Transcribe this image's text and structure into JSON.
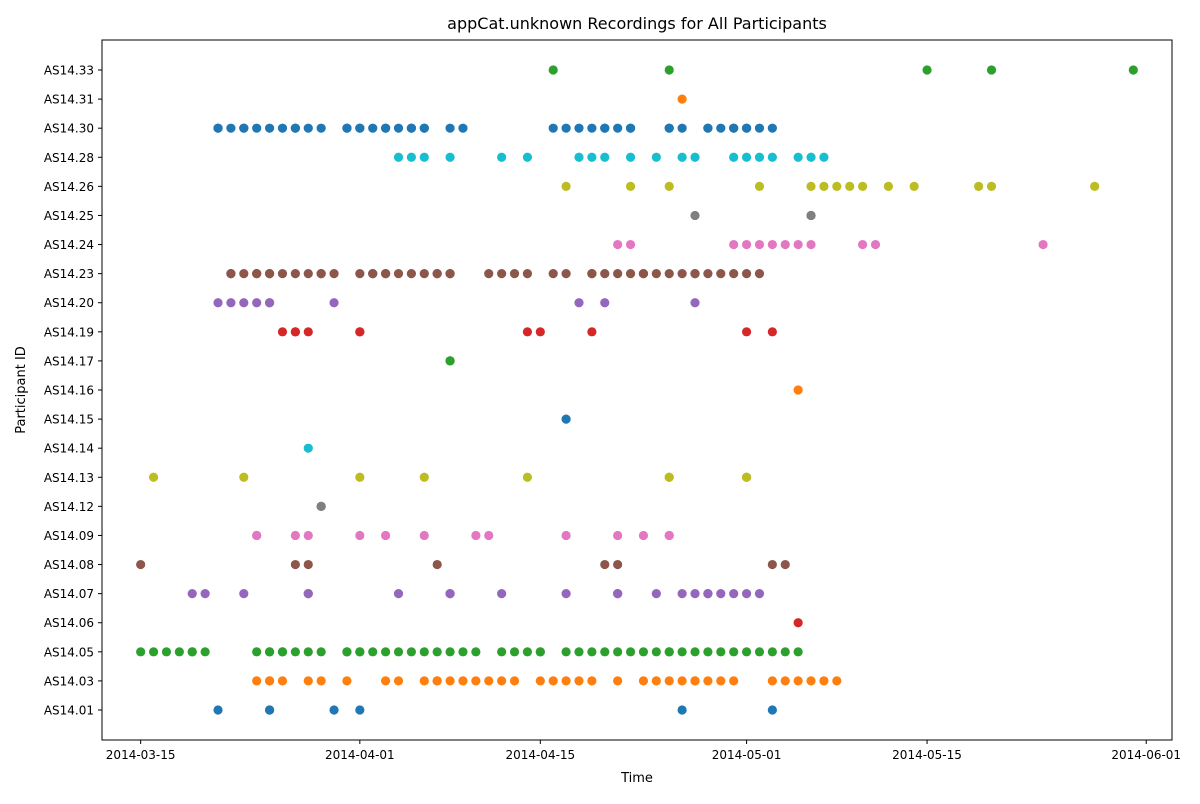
{
  "chart_data": {
    "type": "scatter",
    "title": "appCat.unknown Recordings for All Participants",
    "xlabel": "Time",
    "ylabel": "Participant ID",
    "xlim": [
      "2014-03-12",
      "2014-06-03"
    ],
    "x_ticks": [
      "2014-03-15",
      "2014-04-01",
      "2014-04-15",
      "2014-05-01",
      "2014-05-15",
      "2014-06-01"
    ],
    "categories": [
      "AS14.01",
      "AS14.03",
      "AS14.05",
      "AS14.06",
      "AS14.07",
      "AS14.08",
      "AS14.09",
      "AS14.12",
      "AS14.13",
      "AS14.14",
      "AS14.15",
      "AS14.16",
      "AS14.17",
      "AS14.19",
      "AS14.20",
      "AS14.23",
      "AS14.24",
      "AS14.25",
      "AS14.26",
      "AS14.28",
      "AS14.30",
      "AS14.31",
      "AS14.33"
    ],
    "grid": false,
    "legend": "none",
    "series": [
      {
        "category": "AS14.01",
        "color": "#1f77b4",
        "x": [
          "2014-03-21",
          "2014-03-25",
          "2014-03-25",
          "2014-03-30",
          "2014-04-01",
          "2014-04-26",
          "2014-05-03"
        ]
      },
      {
        "category": "AS14.03",
        "color": "#ff7f0e",
        "x": [
          "2014-03-24",
          "2014-03-25",
          "2014-03-25",
          "2014-03-26",
          "2014-03-28",
          "2014-03-29",
          "2014-03-31",
          "2014-04-03",
          "2014-04-04",
          "2014-04-06",
          "2014-04-07",
          "2014-04-07",
          "2014-04-08",
          "2014-04-09",
          "2014-04-10",
          "2014-04-11",
          "2014-04-12",
          "2014-04-13",
          "2014-04-15",
          "2014-04-16",
          "2014-04-17",
          "2014-04-18",
          "2014-04-19",
          "2014-04-21",
          "2014-04-23",
          "2014-04-24",
          "2014-04-25",
          "2014-04-26",
          "2014-04-27",
          "2014-04-27",
          "2014-04-28",
          "2014-04-29",
          "2014-04-30",
          "2014-05-03",
          "2014-05-04",
          "2014-05-05",
          "2014-05-06",
          "2014-05-07",
          "2014-05-08"
        ]
      },
      {
        "category": "AS14.05",
        "color": "#2ca02c",
        "x": [
          "2014-03-15",
          "2014-03-16",
          "2014-03-17",
          "2014-03-18",
          "2014-03-19",
          "2014-03-19",
          "2014-03-20",
          "2014-03-24",
          "2014-03-25",
          "2014-03-25",
          "2014-03-26",
          "2014-03-26",
          "2014-03-27",
          "2014-03-28",
          "2014-03-29",
          "2014-03-31",
          "2014-03-31",
          "2014-04-01",
          "2014-04-01",
          "2014-04-02",
          "2014-04-03",
          "2014-04-04",
          "2014-04-05",
          "2014-04-06",
          "2014-04-07",
          "2014-04-08",
          "2014-04-09",
          "2014-04-10",
          "2014-04-12",
          "2014-04-13",
          "2014-04-14",
          "2014-04-15",
          "2014-04-15",
          "2014-04-17",
          "2014-04-18",
          "2014-04-19",
          "2014-04-20",
          "2014-04-21",
          "2014-04-22",
          "2014-04-23",
          "2014-04-24",
          "2014-04-25",
          "2014-04-25",
          "2014-04-26",
          "2014-04-27",
          "2014-04-28",
          "2014-04-29",
          "2014-04-30",
          "2014-05-01",
          "2014-05-02",
          "2014-05-03",
          "2014-05-04",
          "2014-05-05"
        ]
      },
      {
        "category": "AS14.06",
        "color": "#d62728",
        "x": [
          "2014-05-05"
        ]
      },
      {
        "category": "AS14.07",
        "color": "#9467bd",
        "x": [
          "2014-03-19",
          "2014-03-20",
          "2014-03-23",
          "2014-03-28",
          "2014-03-28",
          "2014-04-04",
          "2014-04-08",
          "2014-04-08",
          "2014-04-12",
          "2014-04-17",
          "2014-04-21",
          "2014-04-21",
          "2014-04-24",
          "2014-04-26",
          "2014-04-27",
          "2014-04-28",
          "2014-04-28",
          "2014-04-29",
          "2014-04-30",
          "2014-05-01",
          "2014-05-02"
        ]
      },
      {
        "category": "AS14.08",
        "color": "#8c564b",
        "x": [
          "2014-03-15",
          "2014-03-27",
          "2014-03-28",
          "2014-04-07",
          "2014-04-20",
          "2014-04-21",
          "2014-05-03",
          "2014-05-04"
        ]
      },
      {
        "category": "AS14.09",
        "color": "#e377c2",
        "x": [
          "2014-03-24",
          "2014-03-24",
          "2014-03-27",
          "2014-03-28",
          "2014-04-01",
          "2014-04-03",
          "2014-04-06",
          "2014-04-10",
          "2014-04-11",
          "2014-04-17",
          "2014-04-21",
          "2014-04-23",
          "2014-04-25",
          "2014-04-25"
        ]
      },
      {
        "category": "AS14.12",
        "color": "#7f7f7f",
        "x": [
          "2014-03-29",
          "2014-03-29"
        ]
      },
      {
        "category": "AS14.13",
        "color": "#bcbd22",
        "x": [
          "2014-03-16",
          "2014-03-23",
          "2014-04-01",
          "2014-04-06",
          "2014-04-14",
          "2014-04-25",
          "2014-04-25",
          "2014-05-01",
          "2014-05-01"
        ]
      },
      {
        "category": "AS14.14",
        "color": "#17becf",
        "x": [
          "2014-03-28"
        ]
      },
      {
        "category": "AS14.15",
        "color": "#1f77b4",
        "x": [
          "2014-04-17"
        ]
      },
      {
        "category": "AS14.16",
        "color": "#ff7f0e",
        "x": [
          "2014-05-05"
        ]
      },
      {
        "category": "AS14.17",
        "color": "#2ca02c",
        "x": [
          "2014-04-08",
          "2014-04-08"
        ]
      },
      {
        "category": "AS14.19",
        "color": "#d62728",
        "x": [
          "2014-03-26",
          "2014-03-27",
          "2014-03-27",
          "2014-03-28",
          "2014-04-01",
          "2014-04-01",
          "2014-04-14",
          "2014-04-15",
          "2014-04-19",
          "2014-05-01",
          "2014-05-03"
        ]
      },
      {
        "category": "AS14.20",
        "color": "#9467bd",
        "x": [
          "2014-03-21",
          "2014-03-22",
          "2014-03-23",
          "2014-03-24",
          "2014-03-25",
          "2014-03-25",
          "2014-03-30",
          "2014-04-18",
          "2014-04-20",
          "2014-04-27"
        ]
      },
      {
        "category": "AS14.23",
        "color": "#8c564b",
        "x": [
          "2014-03-22",
          "2014-03-22",
          "2014-03-23",
          "2014-03-24",
          "2014-03-24",
          "2014-03-25",
          "2014-03-25",
          "2014-03-26",
          "2014-03-27",
          "2014-03-28",
          "2014-03-29",
          "2014-03-29",
          "2014-03-30",
          "2014-04-01",
          "2014-04-02",
          "2014-04-02",
          "2014-04-03",
          "2014-04-03",
          "2014-04-04",
          "2014-04-05",
          "2014-04-06",
          "2014-04-07",
          "2014-04-07",
          "2014-04-08",
          "2014-04-08",
          "2014-04-11",
          "2014-04-12",
          "2014-04-13",
          "2014-04-14",
          "2014-04-16",
          "2014-04-17",
          "2014-04-19",
          "2014-04-19",
          "2014-04-20",
          "2014-04-21",
          "2014-04-22",
          "2014-04-23",
          "2014-04-23",
          "2014-04-24",
          "2014-04-25",
          "2014-04-26",
          "2014-04-27",
          "2014-04-27",
          "2014-04-28",
          "2014-04-29",
          "2014-04-30",
          "2014-05-01",
          "2014-05-02"
        ]
      },
      {
        "category": "AS14.24",
        "color": "#e377c2",
        "x": [
          "2014-04-21",
          "2014-04-22",
          "2014-04-30",
          "2014-05-01",
          "2014-05-02",
          "2014-05-03",
          "2014-05-04",
          "2014-05-05",
          "2014-05-06",
          "2014-05-10",
          "2014-05-11",
          "2014-05-24"
        ]
      },
      {
        "category": "AS14.25",
        "color": "#7f7f7f",
        "x": [
          "2014-04-27",
          "2014-05-06",
          "2014-05-06"
        ]
      },
      {
        "category": "AS14.26",
        "color": "#bcbd22",
        "x": [
          "2014-04-17",
          "2014-04-22",
          "2014-04-25",
          "2014-05-02",
          "2014-05-06",
          "2014-05-07",
          "2014-05-08",
          "2014-05-09",
          "2014-05-10",
          "2014-05-12",
          "2014-05-14",
          "2014-05-19",
          "2014-05-20",
          "2014-05-28"
        ]
      },
      {
        "category": "AS14.28",
        "color": "#17becf",
        "x": [
          "2014-04-04",
          "2014-04-05",
          "2014-04-06",
          "2014-04-08",
          "2014-04-12",
          "2014-04-14",
          "2014-04-18",
          "2014-04-19",
          "2014-04-20",
          "2014-04-22",
          "2014-04-24",
          "2014-04-26",
          "2014-04-27",
          "2014-04-30",
          "2014-05-01",
          "2014-05-02",
          "2014-05-03",
          "2014-05-05",
          "2014-05-06",
          "2014-05-07"
        ]
      },
      {
        "category": "AS14.30",
        "color": "#1f77b4",
        "x": [
          "2014-03-21",
          "2014-03-21",
          "2014-03-22",
          "2014-03-23",
          "2014-03-23",
          "2014-03-24",
          "2014-03-25",
          "2014-03-26",
          "2014-03-27",
          "2014-03-27",
          "2014-03-28",
          "2014-03-29",
          "2014-03-31",
          "2014-03-31",
          "2014-04-01",
          "2014-04-01",
          "2014-04-02",
          "2014-04-03",
          "2014-04-03",
          "2014-04-04",
          "2014-04-05",
          "2014-04-05",
          "2014-04-06",
          "2014-04-06",
          "2014-04-08",
          "2014-04-09",
          "2014-04-16",
          "2014-04-17",
          "2014-04-18",
          "2014-04-19",
          "2014-04-20",
          "2014-04-20",
          "2014-04-21",
          "2014-04-22",
          "2014-04-22",
          "2014-04-25",
          "2014-04-25",
          "2014-04-26",
          "2014-04-28",
          "2014-04-28",
          "2014-04-29",
          "2014-04-30",
          "2014-04-30",
          "2014-05-01",
          "2014-05-01",
          "2014-05-02",
          "2014-05-03"
        ]
      },
      {
        "category": "AS14.31",
        "color": "#ff7f0e",
        "x": [
          "2014-04-26"
        ]
      },
      {
        "category": "AS14.33",
        "color": "#2ca02c",
        "x": [
          "2014-04-16",
          "2014-04-25",
          "2014-05-15",
          "2014-05-20",
          "2014-05-31"
        ]
      }
    ]
  }
}
